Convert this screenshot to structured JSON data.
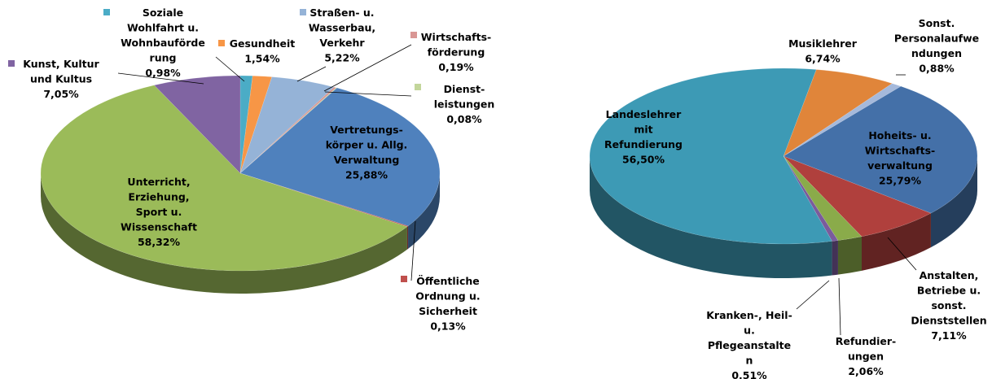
{
  "chart_data": [
    {
      "type": "pie",
      "categories": [
        "Soziale\nWohlfahrt u.\nWohnbauförde\nrung",
        "Gesundheit",
        "Straßen- u.\nWasserbau,\nVerkehr",
        "Wirtschafts-\nförderung",
        "Dienst-\nleistungen",
        "Vertretungs-\nkörper u. Allg.\nVerwaltung",
        "Öffentliche\nOrdnung u.\nSicherheit",
        "Unterricht,\nErziehung,\nSport u.\nWissenschaft",
        "Kunst, Kultur\nund Kultus"
      ],
      "values": [
        0.98,
        1.54,
        5.22,
        0.19,
        0.08,
        25.88,
        0.13,
        58.32,
        7.05
      ],
      "value_labels": [
        "0,98%",
        "1,54%",
        "5,22%",
        "0,19%",
        "0,08%",
        "25,88%",
        "0,13%",
        "58,32%",
        "7,05%"
      ],
      "colors": [
        "#4bacc6",
        "#f79646",
        "#95b3d7",
        "#d99694",
        "#c3d69b",
        "#4f81bd",
        "#c0504d",
        "#9bbb59",
        "#8064a2"
      ]
    },
    {
      "type": "pie",
      "categories": [
        "Musiklehrer",
        "Sonst.\nPersonalaufwe\nndungen",
        "Hoheits- u.\nWirtschafts-\nverwaltung",
        "Anstalten,\nBetriebe u.\nsonst.\nDienststellen",
        "Refundier-\nungen",
        "Kranken-, Heil-\nu.\nPflegeanstalte\nn",
        "Landeslehrer\nmit\nRefundierung"
      ],
      "values": [
        6.74,
        0.88,
        25.79,
        7.11,
        2.06,
        0.51,
        56.5
      ],
      "value_labels": [
        "6,74%",
        "0,88%",
        "25,79%",
        "7,11%",
        "2,06%",
        "0,51%",
        "56,50%"
      ],
      "colors": [
        "#e0853a",
        "#a5b9db",
        "#4470a8",
        "#b0403d",
        "#8aab4a",
        "#7a5b9c",
        "#3d9ab5"
      ]
    }
  ]
}
